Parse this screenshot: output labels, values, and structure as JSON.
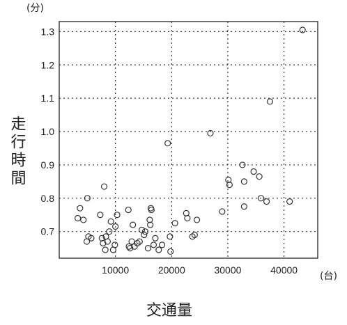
{
  "chart_data": {
    "type": "scatter",
    "xlabel": "交通量",
    "ylabel": "走行時間",
    "xunit": "(台)",
    "yunit": "(分)",
    "xlim": [
      0,
      46000
    ],
    "ylim": [
      0.62,
      1.33
    ],
    "xticks": [
      10000,
      20000,
      30000,
      40000
    ],
    "yticks": [
      0.7,
      0.8,
      0.9,
      1.0,
      1.1,
      1.2,
      1.3
    ],
    "ytick_labels": [
      "0.7",
      "0.8",
      "0.9",
      "1.0",
      "1.1",
      "1.2",
      "1.3"
    ],
    "xtick_labels": [
      "10000",
      "20000",
      "30000",
      "40000"
    ],
    "grid": true,
    "points": [
      [
        3300,
        0.74
      ],
      [
        3700,
        0.77
      ],
      [
        4300,
        0.735
      ],
      [
        5000,
        0.8
      ],
      [
        4900,
        0.67
      ],
      [
        5200,
        0.685
      ],
      [
        5700,
        0.68
      ],
      [
        7300,
        0.75
      ],
      [
        7600,
        0.68
      ],
      [
        7800,
        0.665
      ],
      [
        8000,
        0.835
      ],
      [
        8200,
        0.645
      ],
      [
        8300,
        0.685
      ],
      [
        8600,
        0.67
      ],
      [
        8900,
        0.7
      ],
      [
        9200,
        0.73
      ],
      [
        9600,
        0.645
      ],
      [
        9900,
        0.66
      ],
      [
        10000,
        0.715
      ],
      [
        10300,
        0.75
      ],
      [
        12300,
        0.765
      ],
      [
        12400,
        0.655
      ],
      [
        12600,
        0.65
      ],
      [
        12900,
        0.67
      ],
      [
        13100,
        0.72
      ],
      [
        13400,
        0.655
      ],
      [
        13900,
        0.665
      ],
      [
        14300,
        0.67
      ],
      [
        14700,
        0.705
      ],
      [
        15100,
        0.69
      ],
      [
        15300,
        0.7
      ],
      [
        15800,
        0.65
      ],
      [
        16100,
        0.735
      ],
      [
        16200,
        0.72
      ],
      [
        16300,
        0.77
      ],
      [
        16400,
        0.765
      ],
      [
        16800,
        0.66
      ],
      [
        17100,
        0.68
      ],
      [
        17700,
        0.645
      ],
      [
        18300,
        0.66
      ],
      [
        19300,
        0.965
      ],
      [
        19700,
        0.685
      ],
      [
        19800,
        0.64
      ],
      [
        20600,
        0.725
      ],
      [
        22600,
        0.755
      ],
      [
        22800,
        0.74
      ],
      [
        23700,
        0.685
      ],
      [
        24100,
        0.69
      ],
      [
        24500,
        0.735
      ],
      [
        26900,
        0.995
      ],
      [
        29000,
        0.76
      ],
      [
        30100,
        0.855
      ],
      [
        30300,
        0.84
      ],
      [
        32600,
        0.9
      ],
      [
        32900,
        0.85
      ],
      [
        32900,
        0.775
      ],
      [
        34600,
        0.88
      ],
      [
        35600,
        0.865
      ],
      [
        35900,
        0.8
      ],
      [
        36900,
        0.79
      ],
      [
        37500,
        1.09
      ],
      [
        41000,
        0.79
      ],
      [
        43300,
        1.305
      ]
    ]
  }
}
